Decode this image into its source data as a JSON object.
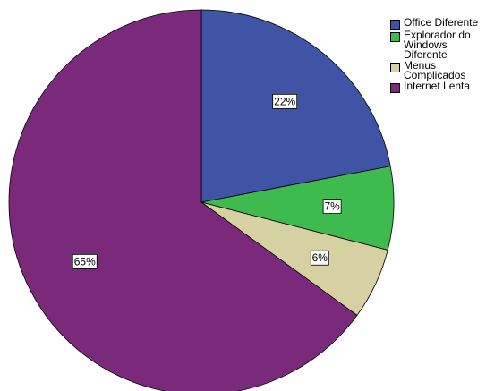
{
  "chart_data": {
    "type": "pie",
    "title": "",
    "legend_position": "top-right",
    "slices": [
      {
        "label": "Office Diferente",
        "legend_text": "Office Diferente",
        "value": 22,
        "value_label": "22%",
        "color": "#4054a6"
      },
      {
        "label": "Explorador do Windows Diferente",
        "legend_text": "Explorador do\nWindows\nDiferente",
        "value": 7,
        "value_label": "7%",
        "color": "#3fba4f"
      },
      {
        "label": "Menus Complicados",
        "legend_text": "Menus\nComplicados",
        "value": 6,
        "value_label": "6%",
        "color": "#d6d1a2"
      },
      {
        "label": "Internet Lenta",
        "legend_text": "Internet Lenta",
        "value": 65,
        "value_label": "65%",
        "color": "#7b2a7b"
      }
    ]
  }
}
